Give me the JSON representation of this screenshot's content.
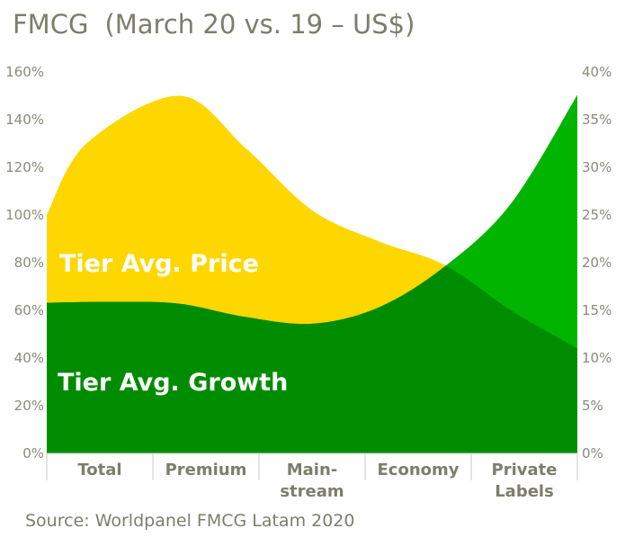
{
  "header": {
    "title_main": "FMCG",
    "title_sub": "(March 20 vs. 19 – US$)"
  },
  "footer": {
    "source": "Source: Worldpanel FMCG Latam 2020"
  },
  "colors": {
    "price_area": "#FFD700",
    "growth_area": "#008C00",
    "growth_line_area": "#00B400",
    "axis_text": "#8a8a7a"
  },
  "chart_data": {
    "type": "area",
    "categories": [
      [
        "Total"
      ],
      [
        "Premium"
      ],
      [
        "Main-",
        "stream"
      ],
      [
        "Economy"
      ],
      [
        "Private",
        "Labels"
      ]
    ],
    "y_left": {
      "ticks": [
        "160%",
        "140%",
        "120%",
        "100%",
        "80%",
        "60%",
        "40%",
        "20%",
        "0%"
      ],
      "range": [
        0,
        160
      ]
    },
    "y_right": {
      "ticks": [
        "40%",
        "35%",
        "30%",
        "25%",
        "20%",
        "15%",
        "10%",
        "5%",
        "0%"
      ],
      "range": [
        0,
        40
      ]
    },
    "series": [
      {
        "name": "Tier Avg. Price",
        "axis": "left",
        "x": [
          0,
          0.3,
          1.0,
          1.5,
          2.0,
          2.5,
          3.0,
          3.5,
          4.0
        ],
        "values": [
          100,
          130,
          150,
          128,
          102,
          89,
          79,
          60,
          44
        ]
      },
      {
        "name": "Tier Avg. Growth",
        "axis": "right",
        "x": [
          0,
          0.5,
          1.0,
          1.5,
          2.0,
          2.5,
          3.0,
          3.5,
          4.0
        ],
        "values": [
          15.8,
          15.9,
          15.7,
          14.3,
          13.6,
          15.3,
          19.6,
          26.2,
          37.6
        ]
      }
    ]
  }
}
